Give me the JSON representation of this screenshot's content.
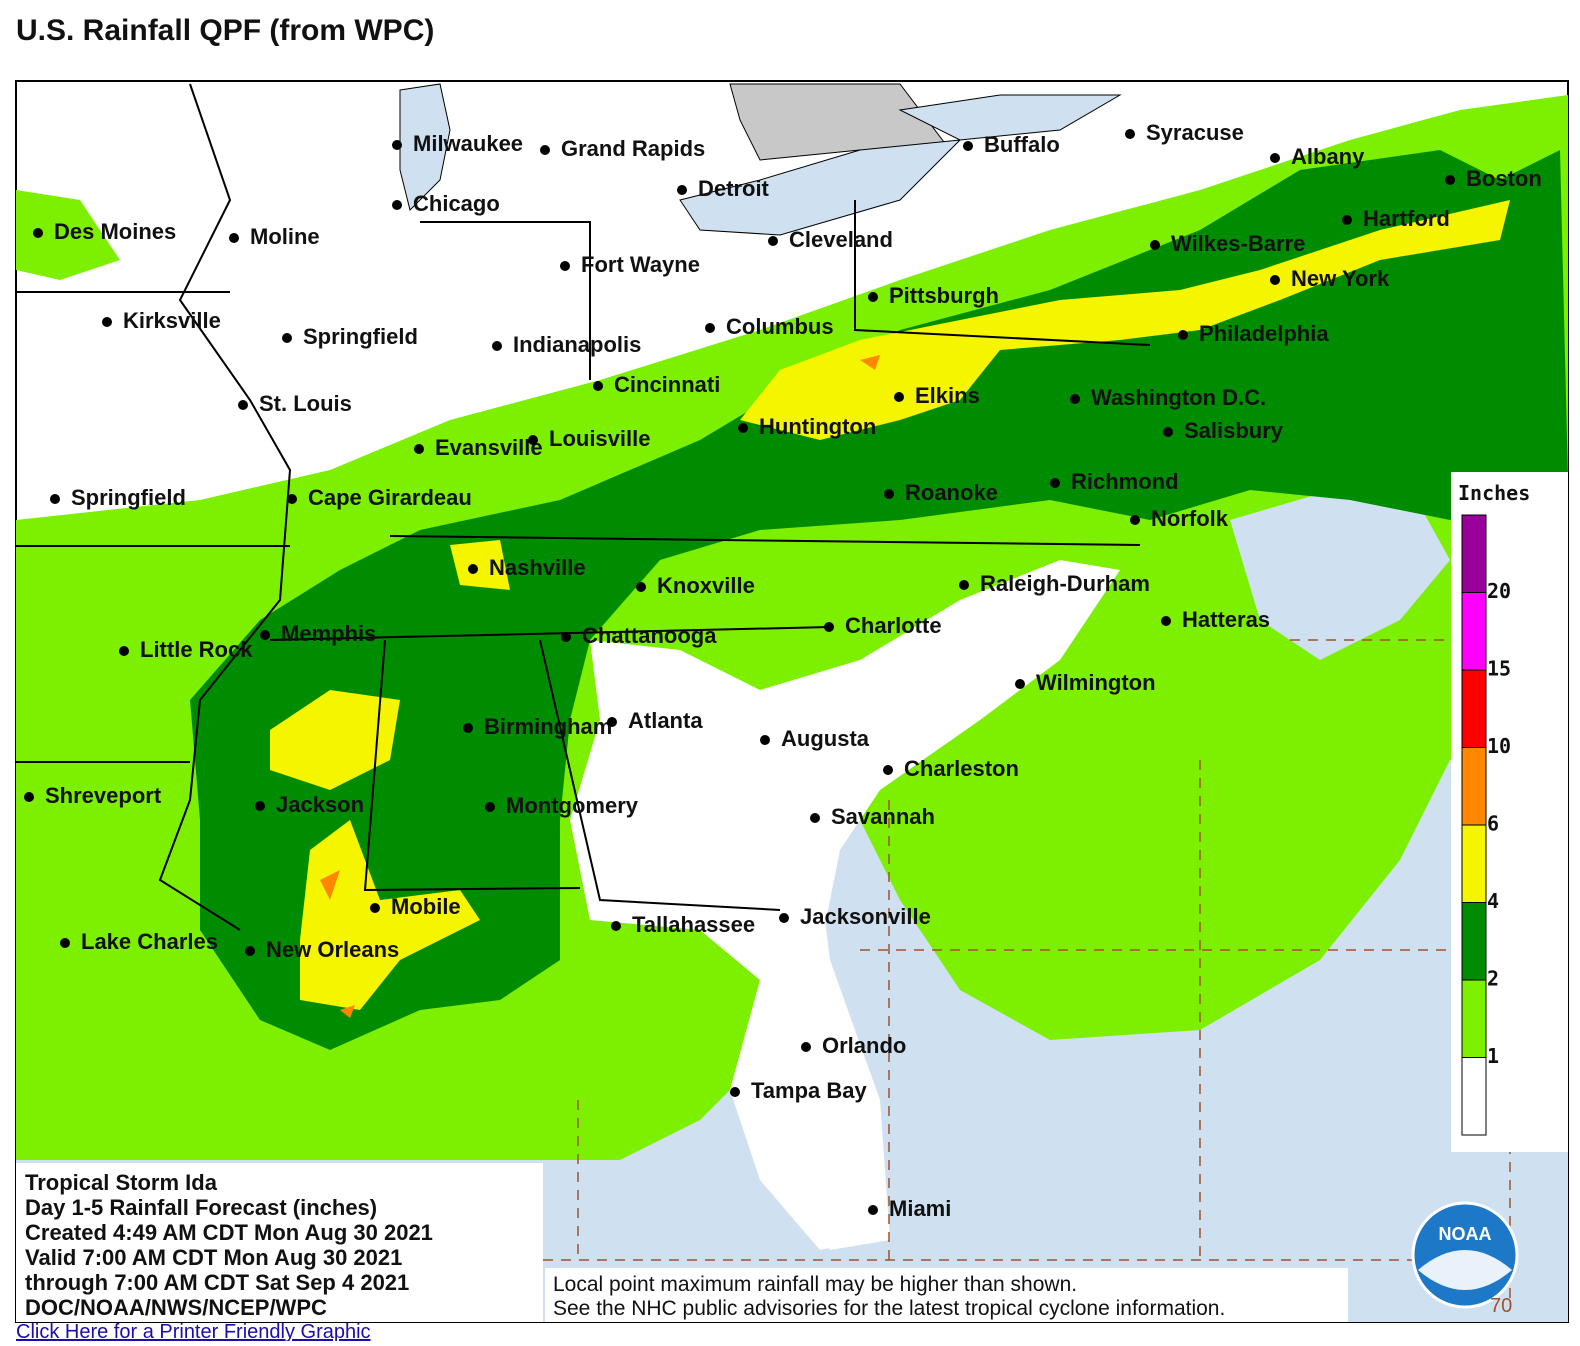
{
  "title": "U.S. Rainfall QPF (from WPC)",
  "cities": [
    "Milwaukee",
    "Grand Rapids",
    "Detroit",
    "Buffalo",
    "Syracuse",
    "Albany",
    "Boston",
    "Chicago",
    "Des Moines",
    "Moline",
    "Cleveland",
    "Hartford",
    "Wilkes-Barre",
    "New York",
    "Fort Wayne",
    "Pittsburgh",
    "Philadelphia",
    "Kirksville",
    "Springfield",
    "Indianapolis",
    "Columbus",
    "Cincinnati",
    "Elkins",
    "Washington D.C.",
    "St. Louis",
    "Huntington",
    "Salisbury",
    "Evansville",
    "Louisville",
    "Roanoke",
    "Richmond",
    "Springfield",
    "Cape Girardeau",
    "Norfolk",
    "Nashville",
    "Knoxville",
    "Raleigh-Durham",
    "Hatteras",
    "Charlotte",
    "Little Rock",
    "Memphis",
    "Chattanooga",
    "Wilmington",
    "Birmingham",
    "Atlanta",
    "Augusta",
    "Charleston",
    "Shreveport",
    "Jackson",
    "Montgomery",
    "Savannah",
    "Mobile",
    "Tallahassee",
    "Jacksonville",
    "Lake Charles",
    "New Orleans",
    "Orlando",
    "Tampa Bay",
    "Miami"
  ],
  "legend": {
    "title": "Inches",
    "ticks": [
      1,
      2,
      4,
      6,
      10,
      15,
      20
    ],
    "colors": [
      "#ffffff",
      "#7cf000",
      "#008c00",
      "#f5f500",
      "#ff8800",
      "#ff0000",
      "#ff00ff",
      "#990099"
    ]
  },
  "info": [
    "Tropical Storm Ida",
    "Day 1-5 Rainfall Forecast (inches)",
    "Created 4:49 AM CDT Mon Aug 30 2021",
    "Valid 7:00 AM CDT Mon Aug 30 2021",
    "through 7:00 AM CDT Sat Sep 4 2021",
    "DOC/NOAA/NWS/NCEP/WPC"
  ],
  "note": [
    "Local point maximum rainfall may be higher than shown.",
    "See the NHC public advisories for the latest tropical cyclone information."
  ],
  "longitude_label": "70",
  "logo_text": "NOAA",
  "link": "Click Here for a Printer Friendly Graphic"
}
